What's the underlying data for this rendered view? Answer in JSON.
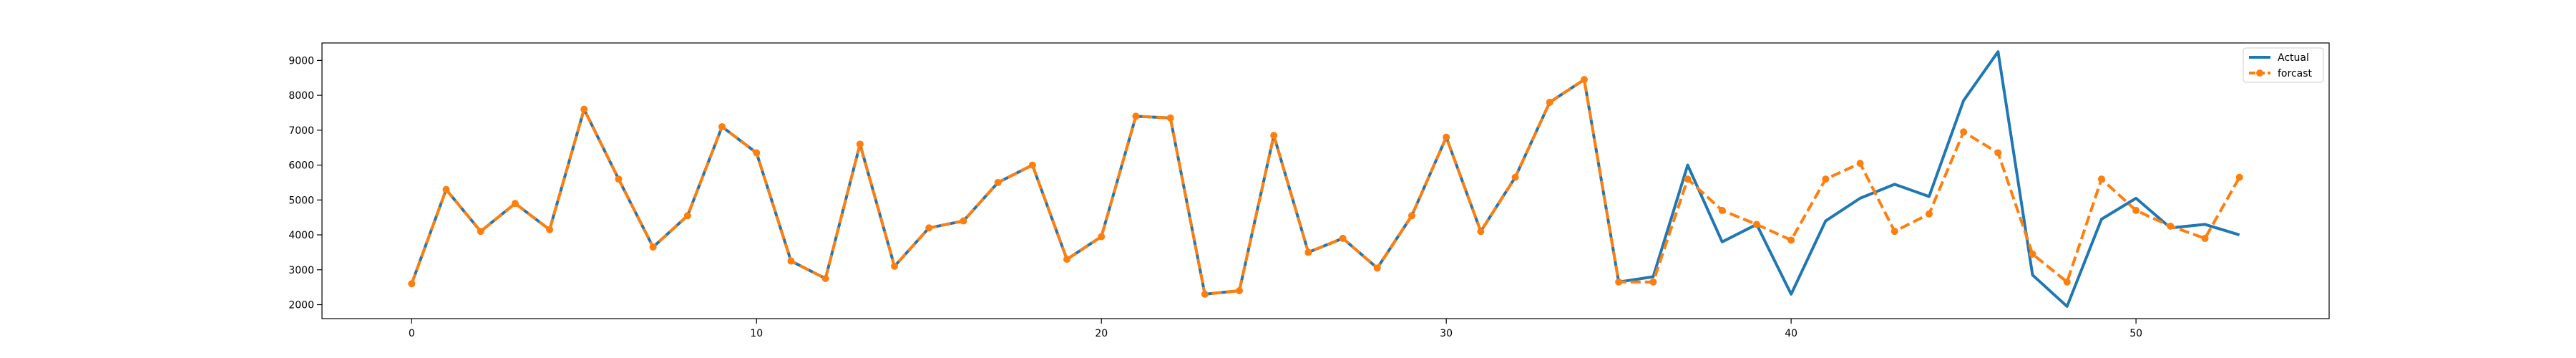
{
  "chart_data": {
    "type": "line",
    "title": "",
    "xlabel": "",
    "ylabel": "",
    "xlim": [
      -2.6,
      55.6
    ],
    "ylim": [
      1600,
      9500
    ],
    "grid": false,
    "legend_position": "top-right",
    "x_ticks": [
      0,
      10,
      20,
      30,
      40,
      50
    ],
    "y_ticks": [
      2000,
      3000,
      4000,
      5000,
      6000,
      7000,
      8000,
      9000
    ],
    "series": [
      {
        "name": "Actual",
        "color": "#1f77b4",
        "style": "solid",
        "marker": "none",
        "x": [
          0,
          1,
          2,
          3,
          4,
          5,
          6,
          7,
          8,
          9,
          10,
          11,
          12,
          13,
          14,
          15,
          16,
          17,
          18,
          19,
          20,
          21,
          22,
          23,
          24,
          25,
          26,
          27,
          28,
          29,
          30,
          31,
          32,
          33,
          34,
          35,
          36,
          37,
          38,
          39,
          40,
          41,
          42,
          43,
          44,
          45,
          46,
          47,
          48,
          49,
          50,
          51,
          52,
          53
        ],
        "values": [
          2600,
          5300,
          4100,
          4900,
          4150,
          7600,
          5600,
          3650,
          4550,
          7100,
          6350,
          3250,
          2750,
          6600,
          3100,
          4200,
          4400,
          5500,
          6000,
          3300,
          3950,
          7400,
          7350,
          2300,
          2400,
          6850,
          3500,
          3900,
          3050,
          4550,
          6800,
          4100,
          5650,
          7800,
          8450,
          2650,
          2800,
          6000,
          3800,
          4300,
          2300,
          4400,
          5050,
          5450,
          5100,
          7850,
          9250,
          2850,
          1950,
          4450,
          5050,
          4200,
          4300,
          4000
        ]
      },
      {
        "name": "forcast",
        "color": "#ff7f0e",
        "style": "dashed",
        "marker": "circle",
        "x": [
          0,
          1,
          2,
          3,
          4,
          5,
          6,
          7,
          8,
          9,
          10,
          11,
          12,
          13,
          14,
          15,
          16,
          17,
          18,
          19,
          20,
          21,
          22,
          23,
          24,
          25,
          26,
          27,
          28,
          29,
          30,
          31,
          32,
          33,
          34,
          35,
          36,
          37,
          38,
          39,
          40,
          41,
          42,
          43,
          44,
          45,
          46,
          47,
          48,
          49,
          50,
          51,
          52,
          53
        ],
        "values": [
          2600,
          5300,
          4100,
          4900,
          4150,
          7600,
          5600,
          3650,
          4550,
          7100,
          6350,
          3250,
          2750,
          6600,
          3100,
          4200,
          4400,
          5500,
          6000,
          3300,
          3950,
          7400,
          7350,
          2300,
          2400,
          6850,
          3500,
          3900,
          3050,
          4550,
          6800,
          4100,
          5650,
          7800,
          8450,
          2650,
          2650,
          5600,
          4700,
          4300,
          3850,
          5600,
          6050,
          4100,
          4600,
          6950,
          6350,
          3450,
          2650,
          5600,
          4700,
          4250,
          3900,
          5650
        ]
      }
    ]
  }
}
